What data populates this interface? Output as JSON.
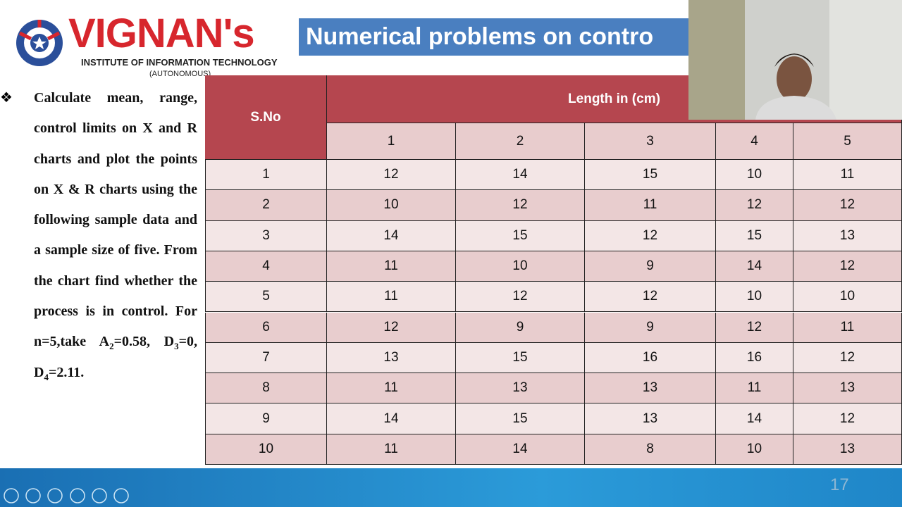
{
  "header": {
    "logo_name": "VIGNAN's",
    "logo_line1": "INSTITUTE OF INFORMATION TECHNOLOGY",
    "logo_line2": "(AUTONOMOUS)",
    "title": "Numerical problems on contro"
  },
  "problem": {
    "parts": [
      "Calculate mean, range, control limits on X and R charts and plot the points on X & R charts using the following sample data and a sample size of five. From the chart find whether the process is in control. For n=5,take A",
      "2",
      "=0.58, D",
      "3",
      "=0, D",
      "4",
      "=2.11."
    ]
  },
  "table": {
    "sno_header": "S.No",
    "group_header": "Length in (cm)",
    "columns": [
      "1",
      "2",
      "3",
      "4",
      "5"
    ],
    "rows": [
      [
        "1",
        "12",
        "14",
        "15",
        "10",
        "11"
      ],
      [
        "2",
        "10",
        "12",
        "11",
        "12",
        "12"
      ],
      [
        "3",
        "14",
        "15",
        "12",
        "15",
        "13"
      ],
      [
        "4",
        "11",
        "10",
        "9",
        "14",
        "12"
      ],
      [
        "5",
        "11",
        "12",
        "12",
        "10",
        "10"
      ],
      [
        "6",
        "12",
        "9",
        "9",
        "12",
        "11"
      ],
      [
        "7",
        "13",
        "15",
        "16",
        "16",
        "12"
      ],
      [
        "8",
        "11",
        "13",
        "13",
        "11",
        "13"
      ],
      [
        "9",
        "14",
        "15",
        "13",
        "14",
        "12"
      ],
      [
        "10",
        "11",
        "14",
        "8",
        "10",
        "13"
      ]
    ]
  },
  "footer": {
    "page_number": "17"
  }
}
